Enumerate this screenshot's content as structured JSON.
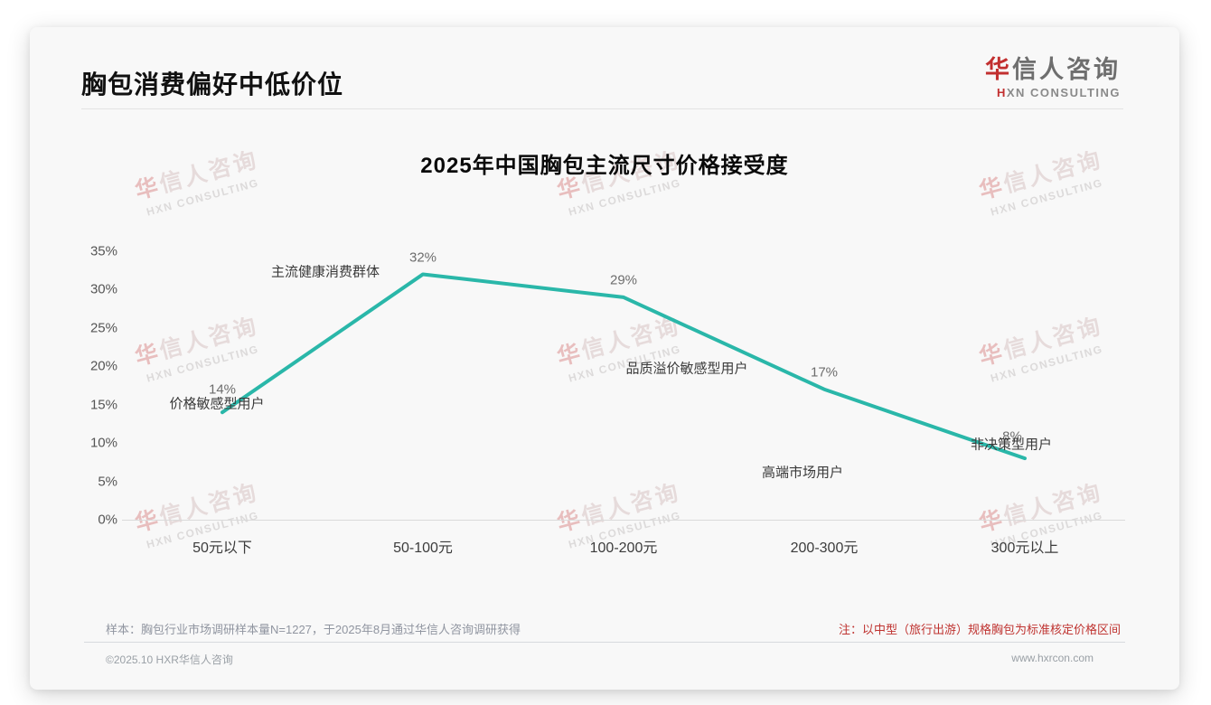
{
  "header": {
    "title": "胸包消费偏好中低价位"
  },
  "logo": {
    "cn_accent": "华",
    "cn_rest": "信人咨询",
    "en_accent": "H",
    "en_rest": "XN CONSULTING"
  },
  "watermark": {
    "cn_accent": "华",
    "cn_rest": "信人咨询",
    "en": "HXN CONSULTING"
  },
  "chart_data": {
    "type": "line",
    "title": "2025年中国胸包主流尺寸价格接受度",
    "categories": [
      "50元以下",
      "50-100元",
      "100-200元",
      "200-300元",
      "300元以上"
    ],
    "values": [
      14,
      32,
      29,
      17,
      8
    ],
    "value_labels": [
      "14%",
      "32%",
      "29%",
      "17%",
      "8%"
    ],
    "point_annotations": [
      "价格敏感型用户",
      "主流健康消费群体",
      "品质溢价敏感型用户",
      "高端市场用户",
      "非决策型用户"
    ],
    "xlabel": "",
    "ylabel": "",
    "ylim": [
      0,
      35
    ],
    "yticks": [
      "35%",
      "30%",
      "25%",
      "20%",
      "15%",
      "10%",
      "5%",
      "0%"
    ],
    "grid": false,
    "legend": false,
    "line_color": "#2ab7a9"
  },
  "notes": {
    "sample": "样本：胸包行业市场调研样本量N=1227，于2025年8月通过华信人咨询调研获得",
    "method": "注：以中型（旅行出游）规格胸包为标准核定价格区间"
  },
  "footer": {
    "copyright": "©2025.10 HXR华信人咨询",
    "website": "www.hxrcon.com"
  },
  "colors": {
    "accent_red": "#c22f2f",
    "line_teal": "#2ab7a9",
    "card_bg": "#f8f8f8"
  }
}
